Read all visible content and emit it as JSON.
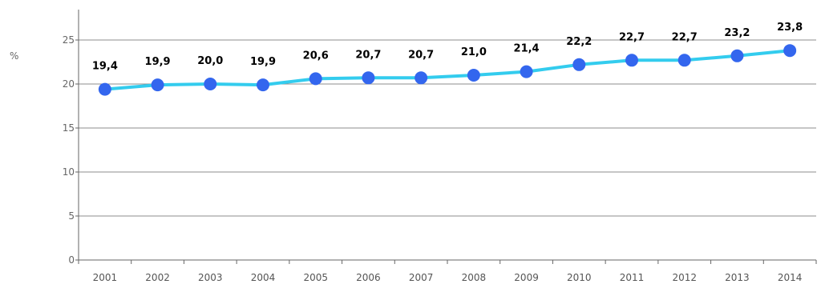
{
  "chart_data": {
    "type": "line",
    "unit_label": "%",
    "x": [
      "2001",
      "2002",
      "2003",
      "2004",
      "2005",
      "2006",
      "2007",
      "2008",
      "2009",
      "2010",
      "2011",
      "2012",
      "2013",
      "2014"
    ],
    "series": [
      {
        "values": [
          19.4,
          19.9,
          20.0,
          19.9,
          20.6,
          20.7,
          20.7,
          21.0,
          21.4,
          22.2,
          22.7,
          22.7,
          23.2,
          23.8
        ],
        "data_labels": [
          "19,4",
          "19,9",
          "20,0",
          "19,9",
          "20,6",
          "20,7",
          "20,7",
          "21,0",
          "21,4",
          "22,2",
          "22,7",
          "22,7",
          "23,2",
          "23,8"
        ]
      }
    ],
    "ylim": [
      0,
      25
    ],
    "y_ticks": [
      "0",
      "5",
      "10",
      "15",
      "20",
      "25"
    ],
    "grid": true,
    "legend": "none",
    "colors": {
      "line": "#33ccee",
      "marker": "#3366ee",
      "grid": "#8c8c8c",
      "axis": "#666666"
    }
  }
}
